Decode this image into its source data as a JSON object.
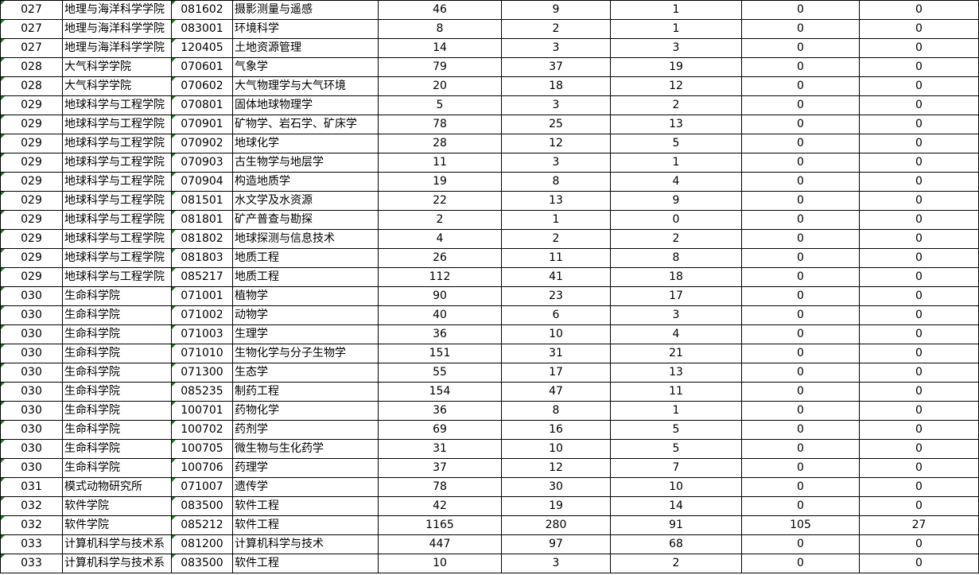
{
  "rows": [
    [
      "027",
      "地理与海洋科学学院",
      "081602",
      "摄影测量与遥感",
      "46",
      "9",
      "1",
      "0",
      "0"
    ],
    [
      "027",
      "地理与海洋科学学院",
      "083001",
      "环境科学",
      "8",
      "2",
      "1",
      "0",
      "0"
    ],
    [
      "027",
      "地理与海洋科学学院",
      "120405",
      "土地资源管理",
      "14",
      "3",
      "3",
      "0",
      "0"
    ],
    [
      "028",
      "大气科学学院",
      "070601",
      "气象学",
      "79",
      "37",
      "19",
      "0",
      "0"
    ],
    [
      "028",
      "大气科学学院",
      "070602",
      "大气物理学与大气环境",
      "20",
      "18",
      "12",
      "0",
      "0"
    ],
    [
      "029",
      "地球科学与工程学院",
      "070801",
      "固体地球物理学",
      "5",
      "3",
      "2",
      "0",
      "0"
    ],
    [
      "029",
      "地球科学与工程学院",
      "070901",
      "矿物学、岩石学、矿床学",
      "78",
      "25",
      "13",
      "0",
      "0"
    ],
    [
      "029",
      "地球科学与工程学院",
      "070902",
      "地球化学",
      "28",
      "12",
      "5",
      "0",
      "0"
    ],
    [
      "029",
      "地球科学与工程学院",
      "070903",
      "古生物学与地层学",
      "11",
      "3",
      "1",
      "0",
      "0"
    ],
    [
      "029",
      "地球科学与工程学院",
      "070904",
      "构造地质学",
      "19",
      "8",
      "4",
      "0",
      "0"
    ],
    [
      "029",
      "地球科学与工程学院",
      "081501",
      "水文学及水资源",
      "22",
      "13",
      "9",
      "0",
      "0"
    ],
    [
      "029",
      "地球科学与工程学院",
      "081801",
      "矿产普查与勘探",
      "2",
      "1",
      "0",
      "0",
      "0"
    ],
    [
      "029",
      "地球科学与工程学院",
      "081802",
      "地球探测与信息技术",
      "4",
      "2",
      "2",
      "0",
      "0"
    ],
    [
      "029",
      "地球科学与工程学院",
      "081803",
      "地质工程",
      "26",
      "11",
      "8",
      "0",
      "0"
    ],
    [
      "029",
      "地球科学与工程学院",
      "085217",
      "地质工程",
      "112",
      "41",
      "18",
      "0",
      "0"
    ],
    [
      "030",
      "生命科学院",
      "071001",
      "植物学",
      "90",
      "23",
      "17",
      "0",
      "0"
    ],
    [
      "030",
      "生命科学院",
      "071002",
      "动物学",
      "40",
      "6",
      "3",
      "0",
      "0"
    ],
    [
      "030",
      "生命科学院",
      "071003",
      "生理学",
      "36",
      "10",
      "4",
      "0",
      "0"
    ],
    [
      "030",
      "生命科学院",
      "071010",
      "生物化学与分子生物学",
      "151",
      "31",
      "21",
      "0",
      "0"
    ],
    [
      "030",
      "生命科学院",
      "071300",
      "生态学",
      "55",
      "17",
      "13",
      "0",
      "0"
    ],
    [
      "030",
      "生命科学院",
      "085235",
      "制药工程",
      "154",
      "47",
      "11",
      "0",
      "0"
    ],
    [
      "030",
      "生命科学院",
      "100701",
      "药物化学",
      "36",
      "8",
      "1",
      "0",
      "0"
    ],
    [
      "030",
      "生命科学院",
      "100702",
      "药剂学",
      "69",
      "16",
      "5",
      "0",
      "0"
    ],
    [
      "030",
      "生命科学院",
      "100705",
      "微生物与生化药学",
      "31",
      "10",
      "5",
      "0",
      "0"
    ],
    [
      "030",
      "生命科学院",
      "100706",
      "药理学",
      "37",
      "12",
      "7",
      "0",
      "0"
    ],
    [
      "031",
      "模式动物研究所",
      "071007",
      "遗传学",
      "78",
      "30",
      "10",
      "0",
      "0"
    ],
    [
      "032",
      "软件学院",
      "083500",
      "软件工程",
      "42",
      "19",
      "14",
      "0",
      "0"
    ],
    [
      "032",
      "软件学院",
      "085212",
      "软件工程",
      "1165",
      "280",
      "91",
      "105",
      "27"
    ],
    [
      "033",
      "计算机科学与技术系",
      "081200",
      "计算机科学与技术",
      "447",
      "97",
      "68",
      "0",
      "0"
    ],
    [
      "033",
      "计算机科学与技术系",
      "083500",
      "软件工程",
      "10",
      "3",
      "2",
      "0",
      "0"
    ]
  ],
  "colors": {
    "error_indicator": "#1e7b1e",
    "grid": "#000000"
  }
}
